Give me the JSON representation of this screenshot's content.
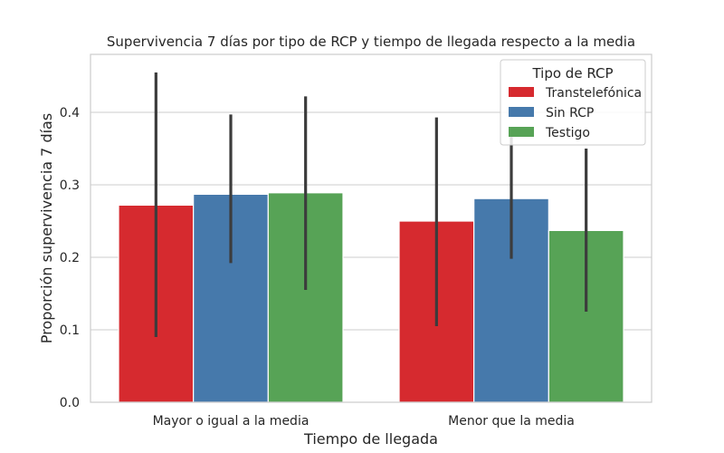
{
  "chart_data": {
    "type": "bar",
    "title": "Supervivencia 7 días por tipo de RCP y tiempo de llegada respecto a la media",
    "xlabel": "Tiempo de llegada",
    "ylabel": "Proporción supervivencia 7 días",
    "categories": [
      "Mayor o igual a la media",
      "Menor que la media"
    ],
    "ylim": [
      0,
      0.48
    ],
    "yticks": [
      0.0,
      0.1,
      0.2,
      0.3,
      0.4
    ],
    "ytick_labels": [
      "0.0",
      "0.1",
      "0.2",
      "0.3",
      "0.4"
    ],
    "grid": true,
    "legend": {
      "title": "Tipo de RCP",
      "placement": "top-right"
    },
    "series": [
      {
        "name": "Transtelefónica",
        "color": "#d62a2f",
        "values": [
          0.272,
          0.25
        ],
        "err_low": [
          0.09,
          0.105
        ],
        "err_high": [
          0.455,
          0.393
        ]
      },
      {
        "name": "Sin RCP",
        "color": "#4679ab",
        "values": [
          0.287,
          0.281
        ],
        "err_low": [
          0.192,
          0.198
        ],
        "err_high": [
          0.397,
          0.38
        ]
      },
      {
        "name": "Testigo",
        "color": "#57a356",
        "values": [
          0.289,
          0.237
        ],
        "err_low": [
          0.155,
          0.125
        ],
        "err_high": [
          0.422,
          0.35
        ]
      }
    ]
  }
}
